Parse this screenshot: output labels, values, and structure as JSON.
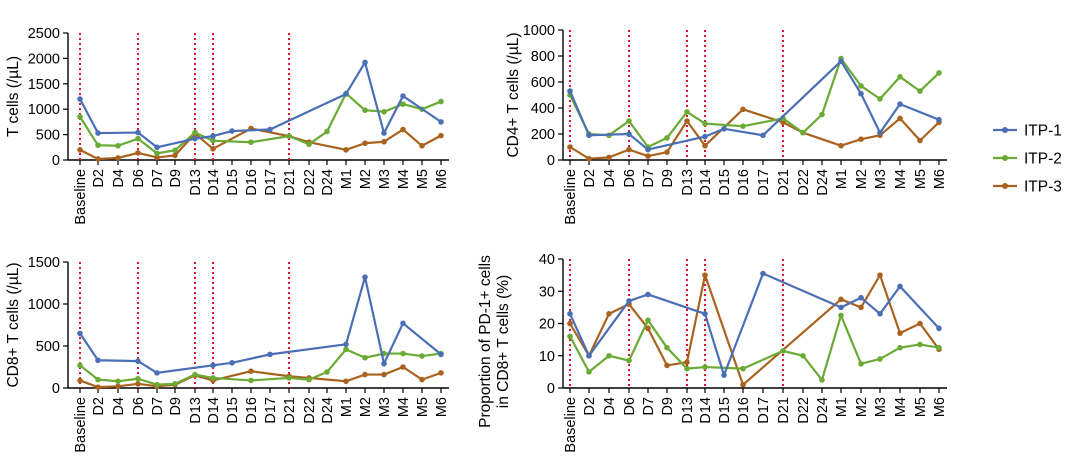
{
  "legend": {
    "placement": "right",
    "items": [
      {
        "name": "ITP-1",
        "color": "#4a6fb5"
      },
      {
        "name": "ITP-2",
        "color": "#6aaa35"
      },
      {
        "name": "ITP-3",
        "color": "#a9631f"
      }
    ]
  },
  "chart_data": [
    {
      "type": "line",
      "id": "t-cells",
      "ylabel": "T cells (/µL)",
      "ylim": [
        0,
        2500
      ],
      "yticks": [
        "0",
        "500",
        "1000",
        "1500",
        "2000",
        "2500"
      ],
      "categories": [
        "Baseline",
        "D2",
        "D4",
        "D6",
        "D7",
        "D9",
        "D13",
        "D14",
        "D15",
        "D16",
        "D17",
        "D21",
        "D22",
        "D24",
        "M1",
        "M2",
        "M3",
        "M4",
        "M5",
        "M6"
      ],
      "vlines": [
        "Baseline",
        "D6",
        "D13",
        "D14",
        "D21"
      ],
      "series": [
        {
          "name": "ITP-1",
          "points": [
            [
              "Baseline",
              1200
            ],
            [
              "D2",
              530
            ],
            [
              "D6",
              540
            ],
            [
              "D7",
              250
            ],
            [
              "D13",
              420
            ],
            [
              "D14",
              470
            ],
            [
              "D15",
              570
            ],
            [
              "D17",
              600
            ],
            [
              "M1",
              1300
            ],
            [
              "M2",
              1920
            ],
            [
              "M3",
              530
            ],
            [
              "M4",
              1260
            ],
            [
              "M6",
              750
            ]
          ]
        },
        {
          "name": "ITP-2",
          "points": [
            [
              "Baseline",
              850
            ],
            [
              "D2",
              290
            ],
            [
              "D4",
              280
            ],
            [
              "D6",
              420
            ],
            [
              "D7",
              130
            ],
            [
              "D9",
              190
            ],
            [
              "D13",
              540
            ],
            [
              "D14",
              380
            ],
            [
              "D16",
              350
            ],
            [
              "D21",
              470
            ],
            [
              "D22",
              310
            ],
            [
              "D24",
              560
            ],
            [
              "M1",
              1310
            ],
            [
              "M2",
              980
            ],
            [
              "M3",
              950
            ],
            [
              "M4",
              1100
            ],
            [
              "M5",
              1000
            ],
            [
              "M6",
              1150
            ]
          ]
        },
        {
          "name": "ITP-3",
          "points": [
            [
              "Baseline",
              200
            ],
            [
              "D2",
              20
            ],
            [
              "D4",
              40
            ],
            [
              "D6",
              140
            ],
            [
              "D7",
              50
            ],
            [
              "D9",
              90
            ],
            [
              "D13",
              520
            ],
            [
              "D14",
              220
            ],
            [
              "D16",
              620
            ],
            [
              "D21",
              470
            ],
            [
              "D22",
              350
            ],
            [
              "M1",
              200
            ],
            [
              "M2",
              330
            ],
            [
              "M3",
              360
            ],
            [
              "M4",
              600
            ],
            [
              "M5",
              280
            ],
            [
              "M6",
              480
            ]
          ]
        }
      ]
    },
    {
      "type": "line",
      "id": "cd4-t-cells",
      "ylabel": "CD4+ T cells (/µL)",
      "ylim": [
        0,
        1000
      ],
      "yticks": [
        "0",
        "200",
        "400",
        "600",
        "800",
        "1000"
      ],
      "categories": [
        "Baseline",
        "D2",
        "D4",
        "D6",
        "D7",
        "D9",
        "D13",
        "D14",
        "D15",
        "D16",
        "D17",
        "D21",
        "D22",
        "D24",
        "M1",
        "M2",
        "M3",
        "M4",
        "M5",
        "M6"
      ],
      "vlines": [
        "Baseline",
        "D6",
        "D13",
        "D14",
        "D21"
      ],
      "series": [
        {
          "name": "ITP-1",
          "points": [
            [
              "Baseline",
              530
            ],
            [
              "D2",
              190
            ],
            [
              "D6",
              200
            ],
            [
              "D7",
              80
            ],
            [
              "D14",
              180
            ],
            [
              "D15",
              240
            ],
            [
              "D17",
              190
            ],
            [
              "M1",
              760
            ],
            [
              "M2",
              510
            ],
            [
              "M3",
              210
            ],
            [
              "M4",
              430
            ],
            [
              "M6",
              310
            ]
          ]
        },
        {
          "name": "ITP-2",
          "points": [
            [
              "Baseline",
              500
            ],
            [
              "D2",
              200
            ],
            [
              "D4",
              190
            ],
            [
              "D6",
              300
            ],
            [
              "D7",
              100
            ],
            [
              "D9",
              170
            ],
            [
              "D13",
              370
            ],
            [
              "D14",
              280
            ],
            [
              "D16",
              260
            ],
            [
              "D21",
              320
            ],
            [
              "D22",
              210
            ],
            [
              "D24",
              350
            ],
            [
              "M1",
              780
            ],
            [
              "M2",
              570
            ],
            [
              "M3",
              470
            ],
            [
              "M4",
              640
            ],
            [
              "M5",
              530
            ],
            [
              "M6",
              670
            ]
          ]
        },
        {
          "name": "ITP-3",
          "points": [
            [
              "Baseline",
              100
            ],
            [
              "D2",
              10
            ],
            [
              "D4",
              20
            ],
            [
              "D6",
              80
            ],
            [
              "D7",
              30
            ],
            [
              "D9",
              60
            ],
            [
              "D13",
              300
            ],
            [
              "D14",
              110
            ],
            [
              "D16",
              390
            ],
            [
              "D21",
              290
            ],
            [
              "D22",
              210
            ],
            [
              "M1",
              110
            ],
            [
              "M2",
              160
            ],
            [
              "M3",
              190
            ],
            [
              "M4",
              320
            ],
            [
              "M5",
              150
            ],
            [
              "M6",
              290
            ]
          ]
        }
      ]
    },
    {
      "type": "line",
      "id": "cd8-t-cells",
      "ylabel": "CD8+ T cells (/µL)",
      "ylim": [
        0,
        1500
      ],
      "yticks": [
        "0",
        "500",
        "1000",
        "1500"
      ],
      "categories": [
        "Baseline",
        "D2",
        "D4",
        "D6",
        "D7",
        "D9",
        "D13",
        "D14",
        "D15",
        "D16",
        "D17",
        "D21",
        "D22",
        "D24",
        "M1",
        "M2",
        "M3",
        "M4",
        "M5",
        "M6"
      ],
      "vlines": [
        "Baseline",
        "D6",
        "D13",
        "D14",
        "D21"
      ],
      "series": [
        {
          "name": "ITP-1",
          "points": [
            [
              "Baseline",
              650
            ],
            [
              "D2",
              330
            ],
            [
              "D6",
              320
            ],
            [
              "D7",
              180
            ],
            [
              "D14",
              270
            ],
            [
              "D15",
              300
            ],
            [
              "D17",
              400
            ],
            [
              "M1",
              520
            ],
            [
              "M2",
              1320
            ],
            [
              "M3",
              290
            ],
            [
              "M4",
              770
            ],
            [
              "M6",
              400
            ]
          ]
        },
        {
          "name": "ITP-2",
          "points": [
            [
              "Baseline",
              270
            ],
            [
              "D2",
              100
            ],
            [
              "D4",
              80
            ],
            [
              "D6",
              110
            ],
            [
              "D7",
              40
            ],
            [
              "D9",
              50
            ],
            [
              "D13",
              160
            ],
            [
              "D14",
              120
            ],
            [
              "D16",
              90
            ],
            [
              "D21",
              120
            ],
            [
              "D22",
              100
            ],
            [
              "D24",
              190
            ],
            [
              "M1",
              460
            ],
            [
              "M2",
              360
            ],
            [
              "M3",
              410
            ],
            [
              "M4",
              410
            ],
            [
              "M5",
              380
            ],
            [
              "M6",
              410
            ]
          ]
        },
        {
          "name": "ITP-3",
          "points": [
            [
              "Baseline",
              90
            ],
            [
              "D2",
              10
            ],
            [
              "D4",
              20
            ],
            [
              "D6",
              50
            ],
            [
              "D7",
              20
            ],
            [
              "D9",
              40
            ],
            [
              "D13",
              150
            ],
            [
              "D14",
              90
            ],
            [
              "D16",
              200
            ],
            [
              "D21",
              140
            ],
            [
              "D22",
              120
            ],
            [
              "M1",
              80
            ],
            [
              "M2",
              160
            ],
            [
              "M3",
              160
            ],
            [
              "M4",
              250
            ],
            [
              "M5",
              100
            ],
            [
              "M6",
              180
            ]
          ]
        }
      ]
    },
    {
      "type": "line",
      "id": "pd1-proportion",
      "ylabel": "Proportion of PD-1+ cells",
      "ylabel2": "in CD8+ T cells (%)",
      "ylim": [
        0,
        40
      ],
      "yticks": [
        "0",
        "10",
        "20",
        "30",
        "40"
      ],
      "categories": [
        "Baseline",
        "D2",
        "D4",
        "D6",
        "D7",
        "D9",
        "D13",
        "D14",
        "D15",
        "D16",
        "D17",
        "D21",
        "D22",
        "D24",
        "M1",
        "M2",
        "M3",
        "M4",
        "M5",
        "M6"
      ],
      "vlines": [
        "Baseline",
        "D6",
        "D13",
        "D14",
        "D21"
      ],
      "series": [
        {
          "name": "ITP-1",
          "points": [
            [
              "Baseline",
              23
            ],
            [
              "D2",
              10
            ],
            [
              "D6",
              27
            ],
            [
              "D7",
              29
            ],
            [
              "D14",
              23
            ],
            [
              "D15",
              4
            ],
            [
              "D17",
              35.5
            ],
            [
              "M1",
              25
            ],
            [
              "M2",
              28
            ],
            [
              "M3",
              23
            ],
            [
              "M4",
              31.5
            ],
            [
              "M6",
              18.5
            ]
          ]
        },
        {
          "name": "ITP-2",
          "points": [
            [
              "Baseline",
              16
            ],
            [
              "D2",
              5
            ],
            [
              "D4",
              10
            ],
            [
              "D6",
              8.5
            ],
            [
              "D7",
              21
            ],
            [
              "D9",
              12.5
            ],
            [
              "D13",
              6
            ],
            [
              "D14",
              6.5
            ],
            [
              "D16",
              6
            ],
            [
              "D21",
              11.5
            ],
            [
              "D22",
              10
            ],
            [
              "D24",
              2.5
            ],
            [
              "M1",
              22.5
            ],
            [
              "M2",
              7.5
            ],
            [
              "M3",
              9
            ],
            [
              "M4",
              12.5
            ],
            [
              "M5",
              13.5
            ],
            [
              "M6",
              12.5
            ]
          ]
        },
        {
          "name": "ITP-3",
          "points": [
            [
              "Baseline",
              20
            ],
            [
              "D2",
              10
            ],
            [
              "D4",
              23
            ],
            [
              "D6",
              26
            ],
            [
              "D7",
              18.5
            ],
            [
              "D9",
              7
            ],
            [
              "D13",
              8
            ],
            [
              "D14",
              35
            ],
            [
              "D16",
              1
            ],
            [
              "M1",
              27.5
            ],
            [
              "M2",
              25
            ],
            [
              "M3",
              35
            ],
            [
              "M4",
              17
            ],
            [
              "M5",
              20
            ],
            [
              "M6",
              12
            ]
          ]
        }
      ]
    }
  ]
}
